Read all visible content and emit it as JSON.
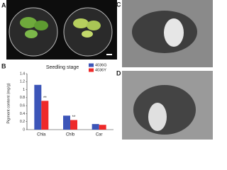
{
  "panels": {
    "a": "A",
    "b": "B",
    "c": "C",
    "d": "D"
  },
  "chart_data": {
    "type": "bar",
    "title": "Seedling stage",
    "y_label": "Pigment content (mg/g)",
    "categories": [
      "Chla",
      "Chlb",
      "Car"
    ],
    "series": [
      {
        "name": "4036G",
        "color": "#3c55b8",
        "values": [
          1.12,
          0.35,
          0.14
        ]
      },
      {
        "name": "4036Y",
        "color": "#ee2a2a",
        "values": [
          0.72,
          0.24,
          0.12
        ]
      }
    ],
    "annotations": [
      "**",
      "**",
      null
    ],
    "ylim": [
      0,
      1.4
    ],
    "yticks": [
      0,
      0.2,
      0.4,
      0.6,
      0.8,
      1,
      1.2,
      1.4
    ],
    "grid": false
  }
}
